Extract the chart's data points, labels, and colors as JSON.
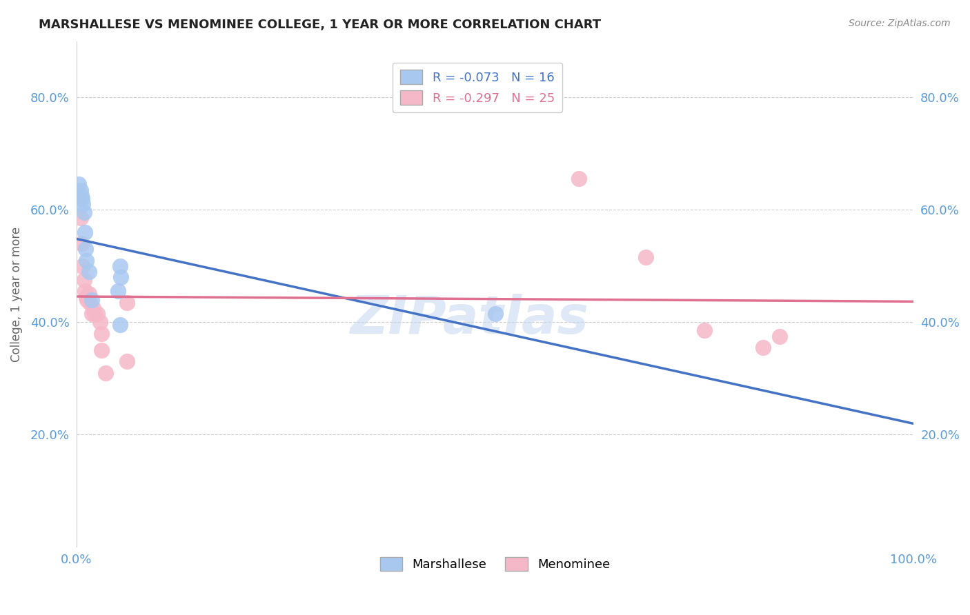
{
  "title": "MARSHALLESE VS MENOMINEE COLLEGE, 1 YEAR OR MORE CORRELATION CHART",
  "source": "Source: ZipAtlas.com",
  "ylabel_label": "College, 1 year or more",
  "xlim": [
    0.0,
    1.0
  ],
  "ylim": [
    0.0,
    0.9
  ],
  "watermark_line1": "ZIP",
  "watermark_line2": "atlas",
  "marshallese_R": "-0.073",
  "marshallese_N": "16",
  "menominee_R": "-0.297",
  "menominee_N": "25",
  "marshallese_color": "#a8c8f0",
  "menominee_color": "#f5b8c8",
  "marshallese_line_color": "#4472c4",
  "menominee_line_color": "#e07090",
  "marshallese_legend_color": "#a8c8f0",
  "menominee_legend_color": "#f5b8c8",
  "marshallese_x": [
    0.003,
    0.005,
    0.006,
    0.007,
    0.008,
    0.009,
    0.01,
    0.011,
    0.012,
    0.015,
    0.018,
    0.05,
    0.052,
    0.053,
    0.5,
    0.052
  ],
  "marshallese_y": [
    0.645,
    0.635,
    0.625,
    0.62,
    0.61,
    0.595,
    0.56,
    0.53,
    0.51,
    0.49,
    0.44,
    0.455,
    0.5,
    0.48,
    0.415,
    0.395
  ],
  "menominee_x": [
    0.003,
    0.005,
    0.006,
    0.007,
    0.009,
    0.01,
    0.012,
    0.013,
    0.015,
    0.016,
    0.018,
    0.02,
    0.022,
    0.025,
    0.028,
    0.03,
    0.03,
    0.035,
    0.06,
    0.06,
    0.6,
    0.68,
    0.75,
    0.82,
    0.84
  ],
  "menominee_y": [
    0.62,
    0.585,
    0.54,
    0.5,
    0.475,
    0.455,
    0.445,
    0.44,
    0.45,
    0.435,
    0.415,
    0.425,
    0.415,
    0.415,
    0.4,
    0.35,
    0.38,
    0.31,
    0.435,
    0.33,
    0.655,
    0.515,
    0.385,
    0.355,
    0.375
  ],
  "grid_color": "#cccccc",
  "bg_color": "#ffffff",
  "title_fontsize": 13,
  "tick_color": "#5b9bd5",
  "legend_text_color_1": "#4472c4",
  "legend_text_color_2": "#e07090"
}
